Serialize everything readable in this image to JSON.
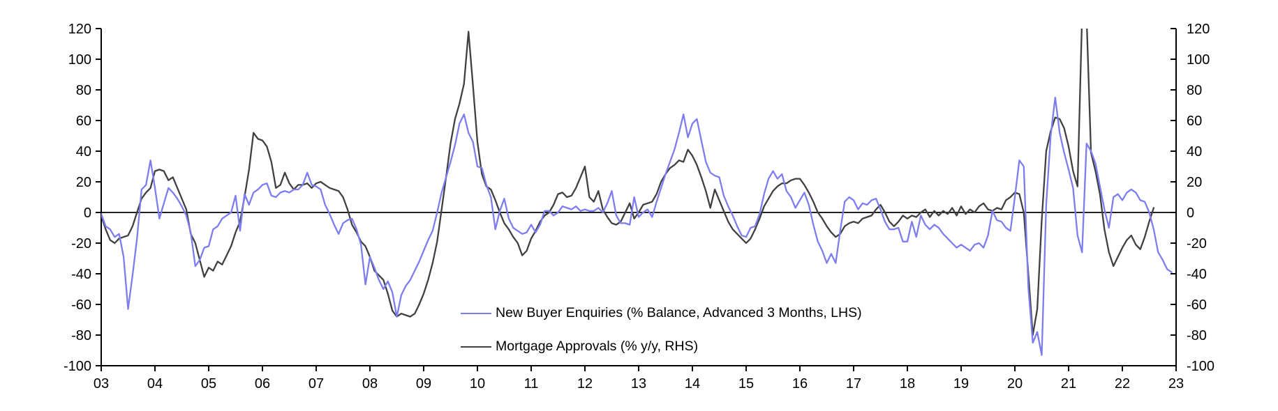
{
  "chart_data": {
    "type": "line",
    "title": "",
    "xlabel": "",
    "ylabel_left": "",
    "ylabel_right": "",
    "x_axis": {
      "start_year": 2003,
      "end_year": 2023,
      "tick_labels": [
        "03",
        "04",
        "05",
        "06",
        "07",
        "08",
        "09",
        "10",
        "11",
        "12",
        "13",
        "14",
        "15",
        "16",
        "17",
        "18",
        "19",
        "20",
        "21",
        "22",
        "23"
      ]
    },
    "y_axis_left": {
      "min": -100,
      "max": 120,
      "tick_step": 20,
      "tick_labels": [
        "120",
        "100",
        "80",
        "60",
        "40",
        "20",
        "0",
        "-20",
        "-40",
        "-60",
        "-80",
        "-100"
      ]
    },
    "y_axis_right": {
      "min": -100,
      "max": 120,
      "tick_step": 20,
      "tick_labels": [
        "120",
        "100",
        "80",
        "60",
        "40",
        "20",
        "0",
        "-20",
        "-40",
        "-60",
        "-80",
        "-100"
      ]
    },
    "grid": "off",
    "zero_line": true,
    "legend_position": "inside bottom-center-left",
    "series": [
      {
        "name": "New Buyer Enquiries (% Balance, Advanced 3 Months, LHS)",
        "axis": "LHS",
        "color": "#7d7df0",
        "frequency": "monthly",
        "start": "2003-01",
        "values": [
          -1,
          -9,
          -11,
          -16,
          -14,
          -29,
          -63,
          -41,
          -17,
          15,
          18,
          34,
          16,
          -4,
          6,
          16,
          13,
          9,
          4,
          -2,
          -13,
          -35,
          -31,
          -23,
          -22,
          -11,
          -9,
          -4,
          -2,
          0,
          11,
          -12,
          12,
          5,
          13,
          15,
          18,
          19,
          11,
          10,
          13,
          14,
          13,
          15,
          15,
          18,
          26,
          18,
          17,
          15,
          5,
          -1,
          -8,
          -14,
          -7,
          -5,
          -4,
          -11,
          -21,
          -47,
          -29,
          -36,
          -44,
          -50,
          -45,
          -52,
          -68,
          -54,
          -48,
          -44,
          -38,
          -32,
          -25,
          -18,
          -12,
          0,
          13,
          23,
          33,
          44,
          58,
          64,
          52,
          46,
          30,
          29,
          18,
          10,
          -11,
          1,
          9,
          -4,
          -10,
          -12,
          -14,
          -13,
          -8,
          -13,
          -8,
          1,
          1,
          -2,
          0,
          4,
          3,
          2,
          4,
          1,
          2,
          1,
          1,
          3,
          0,
          6,
          14,
          -2,
          -7,
          -7,
          -8,
          10,
          -3,
          0,
          2,
          -3,
          7,
          16,
          25,
          33,
          41,
          52,
          64,
          49,
          58,
          61,
          47,
          33,
          26,
          24,
          23,
          11,
          4,
          -2,
          -9,
          -15,
          -16,
          -10,
          -9,
          -1,
          12,
          22,
          27,
          22,
          25,
          14,
          10,
          3,
          8,
          13,
          5,
          -8,
          -19,
          -25,
          -33,
          -27,
          -33,
          -12,
          7,
          10,
          8,
          2,
          6,
          5,
          8,
          9,
          2,
          -6,
          -11,
          -11,
          -10,
          -19,
          -19,
          -6,
          -16,
          -2,
          -8,
          -11,
          -8,
          -10,
          -14,
          -17,
          -20,
          -23,
          -21,
          -23,
          -25,
          -21,
          -20,
          -23,
          -15,
          1,
          -5,
          -6,
          -10,
          -12,
          10,
          34,
          30,
          -49,
          -85,
          -78,
          -93,
          5,
          50,
          75,
          52,
          39,
          28,
          16,
          -15,
          -26,
          45,
          40,
          32,
          17,
          2,
          -10,
          10,
          12,
          8,
          13,
          15,
          13,
          8,
          7,
          0,
          -11,
          -26,
          -31,
          -37,
          -39
        ]
      },
      {
        "name": "Mortgage Approvals (% y/y, RHS)",
        "axis": "RHS",
        "color": "#404040",
        "frequency": "monthly",
        "start": "2003-01",
        "values": [
          -2,
          -11,
          -18,
          -20,
          -17,
          -16,
          -15,
          -9,
          0,
          9,
          13,
          16,
          27,
          28,
          27,
          21,
          23,
          16,
          9,
          2,
          -14,
          -20,
          -31,
          -42,
          -36,
          -38,
          -32,
          -34,
          -28,
          -22,
          -13,
          -6,
          10,
          28,
          52,
          48,
          47,
          43,
          33,
          16,
          18,
          26,
          19,
          15,
          18,
          18,
          19,
          16,
          19,
          20,
          18,
          16,
          15,
          14,
          10,
          2,
          -8,
          -13,
          -19,
          -22,
          -29,
          -38,
          -41,
          -44,
          -53,
          -64,
          -68,
          -66,
          -67,
          -68,
          -66,
          -60,
          -53,
          -44,
          -33,
          -19,
          2,
          23,
          45,
          61,
          71,
          84,
          118,
          83,
          46,
          25,
          17,
          15,
          8,
          0,
          -7,
          -11,
          -16,
          -20,
          -28,
          -25,
          -17,
          -12,
          -6,
          -2,
          0,
          5,
          12,
          13,
          10,
          11,
          16,
          23,
          30,
          10,
          7,
          14,
          2,
          -3,
          -7,
          -8,
          -6,
          0,
          6,
          -4,
          0,
          5,
          6,
          7,
          12,
          20,
          25,
          29,
          31,
          34,
          33,
          41,
          37,
          31,
          23,
          14,
          3,
          15,
          8,
          1,
          -6,
          -11,
          -14,
          -17,
          -20,
          -17,
          -11,
          -4,
          4,
          9,
          14,
          17,
          19,
          19,
          21,
          22,
          22,
          18,
          13,
          7,
          0,
          -4,
          -9,
          -13,
          -16,
          -14,
          -9,
          -7,
          -6,
          -7,
          -4,
          -3,
          -2,
          2,
          5,
          0,
          -6,
          -9,
          -6,
          -2,
          -4,
          -2,
          -3,
          0,
          2,
          -3,
          1,
          -2,
          1,
          -1,
          3,
          -2,
          4,
          -1,
          2,
          0,
          4,
          6,
          2,
          1,
          3,
          2,
          8,
          10,
          13,
          12,
          0,
          -40,
          -80,
          -63,
          -5,
          40,
          53,
          62,
          61,
          55,
          43,
          27,
          17,
          128,
          128,
          39,
          27,
          12,
          -11,
          -26,
          -35,
          -29,
          -23,
          -18,
          -15,
          -21,
          -24,
          -16,
          -6,
          3
        ]
      }
    ],
    "legend": {
      "entries": [
        {
          "label": "New Buyer Enquiries (% Balance, Advanced 3 Months, LHS)",
          "color": "#7d7df0"
        },
        {
          "label": "Mortgage Approvals (% y/y, RHS)",
          "color": "#404040"
        }
      ]
    }
  }
}
